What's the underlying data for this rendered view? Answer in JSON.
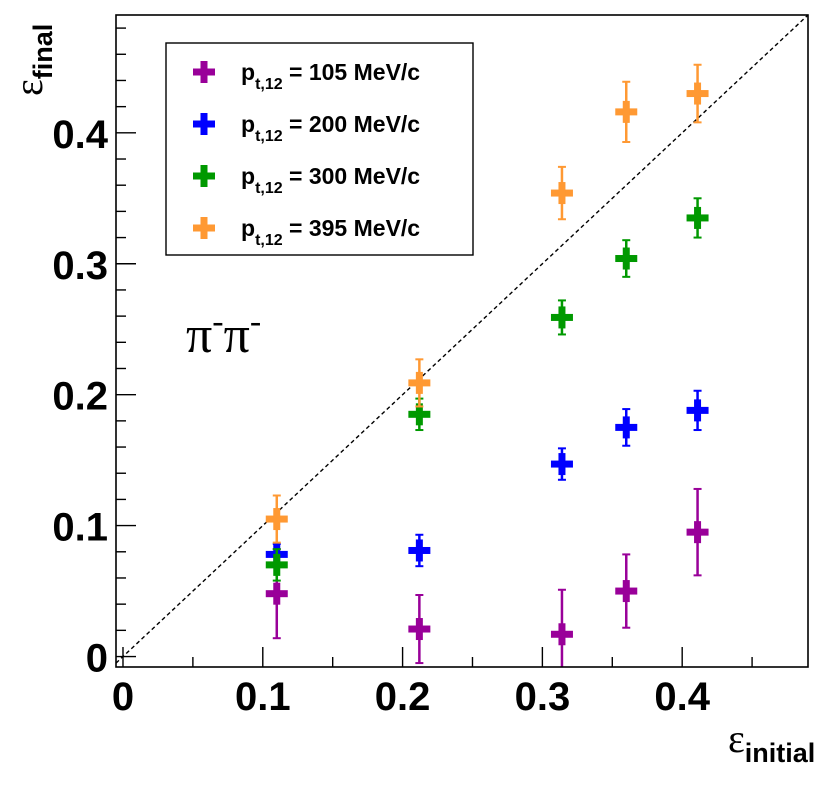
{
  "chart_data": {
    "type": "scatter",
    "xlabel": {
      "symbol": "ε",
      "sub": "initial"
    },
    "ylabel": {
      "symbol": "ε",
      "sub": "final"
    },
    "xlim": [
      -0.005,
      0.49
    ],
    "ylim": [
      -0.008,
      0.49
    ],
    "xticks": [
      {
        "value": 0,
        "label": "0"
      },
      {
        "value": 0.1,
        "label": "0.1"
      },
      {
        "value": 0.2,
        "label": "0.2"
      },
      {
        "value": 0.3,
        "label": "0.3"
      },
      {
        "value": 0.4,
        "label": "0.4"
      }
    ],
    "yticks": [
      {
        "value": 0,
        "label": "0"
      },
      {
        "value": 0.1,
        "label": "0.1"
      },
      {
        "value": 0.2,
        "label": "0.2"
      },
      {
        "value": 0.3,
        "label": "0.3"
      },
      {
        "value": 0.4,
        "label": "0.4"
      }
    ],
    "reference_line": {
      "style": "dashed",
      "slope": 1,
      "intercept": 0
    },
    "annotation": {
      "base": "π",
      "sup": "-",
      "text": "π-π-"
    },
    "legend_placement": "top-left",
    "series": [
      {
        "name": "p_t,12 = 105 MeV/c",
        "label_main": "p",
        "label_sub": "t,12",
        "label_rest": " = 105 MeV/c",
        "color": "#990099",
        "points": [
          {
            "x": 0.11,
            "y": 0.048,
            "yerr": 0.034,
            "xerr": 0.004
          },
          {
            "x": 0.212,
            "y": 0.021,
            "yerr": 0.026,
            "xerr": 0.004
          },
          {
            "x": 0.314,
            "y": 0.017,
            "yerr": 0.034,
            "xerr": 0.004
          },
          {
            "x": 0.36,
            "y": 0.05,
            "yerr": 0.028,
            "xerr": 0.004
          },
          {
            "x": 0.411,
            "y": 0.095,
            "yerr": 0.033,
            "xerr": 0.006
          }
        ]
      },
      {
        "name": "p_t,12 = 200 MeV/c",
        "label_main": "p",
        "label_sub": "t,12",
        "label_rest": " = 200 MeV/c",
        "color": "#0000ff",
        "points": [
          {
            "x": 0.11,
            "y": 0.078,
            "yerr": 0.008,
            "xerr": 0.004
          },
          {
            "x": 0.212,
            "y": 0.081,
            "yerr": 0.012,
            "xerr": 0.004
          },
          {
            "x": 0.314,
            "y": 0.147,
            "yerr": 0.012,
            "xerr": 0.004
          },
          {
            "x": 0.36,
            "y": 0.175,
            "yerr": 0.014,
            "xerr": 0.004
          },
          {
            "x": 0.411,
            "y": 0.188,
            "yerr": 0.015,
            "xerr": 0.006
          }
        ]
      },
      {
        "name": "p_t,12 = 300 MeV/c",
        "label_main": "p",
        "label_sub": "t,12",
        "label_rest": " = 300 MeV/c",
        "color": "#009900",
        "points": [
          {
            "x": 0.11,
            "y": 0.07,
            "yerr": 0.012,
            "xerr": 0.004
          },
          {
            "x": 0.212,
            "y": 0.185,
            "yerr": 0.012,
            "xerr": 0.004
          },
          {
            "x": 0.314,
            "y": 0.259,
            "yerr": 0.013,
            "xerr": 0.004
          },
          {
            "x": 0.36,
            "y": 0.304,
            "yerr": 0.014,
            "xerr": 0.004
          },
          {
            "x": 0.411,
            "y": 0.335,
            "yerr": 0.015,
            "xerr": 0.006
          }
        ]
      },
      {
        "name": "p_t,12 = 395 MeV/c",
        "label_main": "p",
        "label_sub": "t,12",
        "label_rest": " = 395 MeV/c",
        "color": "#ff9933",
        "points": [
          {
            "x": 0.11,
            "y": 0.105,
            "yerr": 0.018,
            "xerr": 0.004
          },
          {
            "x": 0.212,
            "y": 0.209,
            "yerr": 0.018,
            "xerr": 0.004
          },
          {
            "x": 0.314,
            "y": 0.354,
            "yerr": 0.02,
            "xerr": 0.004
          },
          {
            "x": 0.36,
            "y": 0.416,
            "yerr": 0.023,
            "xerr": 0.004
          },
          {
            "x": 0.411,
            "y": 0.43,
            "yerr": 0.022,
            "xerr": 0.006
          }
        ]
      }
    ]
  }
}
